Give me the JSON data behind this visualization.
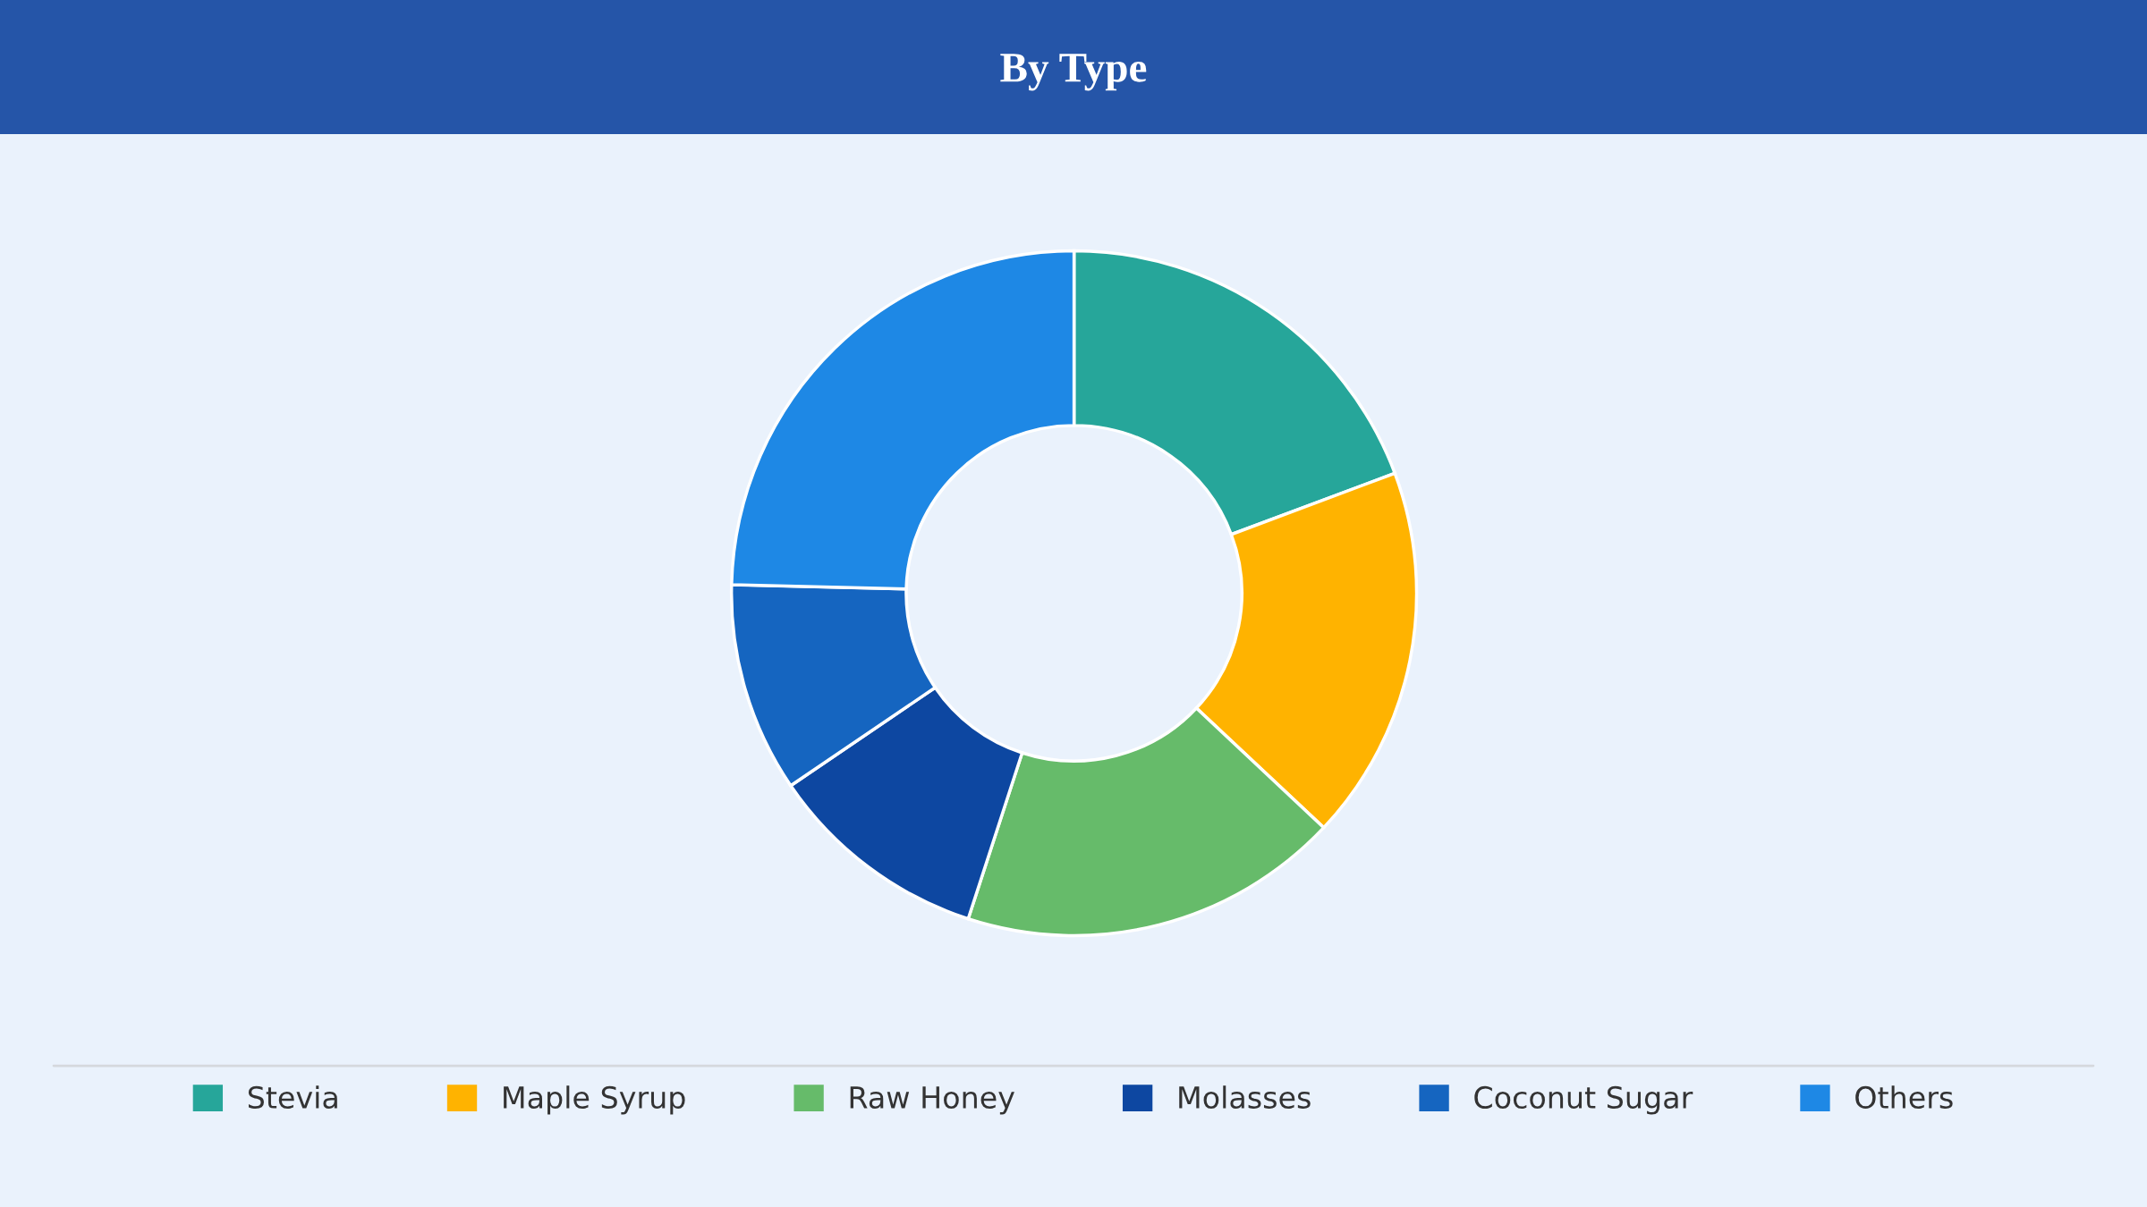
{
  "chart_data": {
    "type": "donut",
    "title": "By Type",
    "categories": [
      "Stevia",
      "Maple Syrup",
      "Raw Honey",
      "Molasses",
      "Coconut Sugar",
      "Others"
    ],
    "values": [
      19.3,
      17.7,
      18.0,
      10.5,
      9.9,
      24.6
    ],
    "colors": [
      "#26a69a",
      "#ffb300",
      "#66bb6a",
      "#0d47a1",
      "#1565c0",
      "#1e88e5"
    ],
    "legend": "bottom"
  }
}
